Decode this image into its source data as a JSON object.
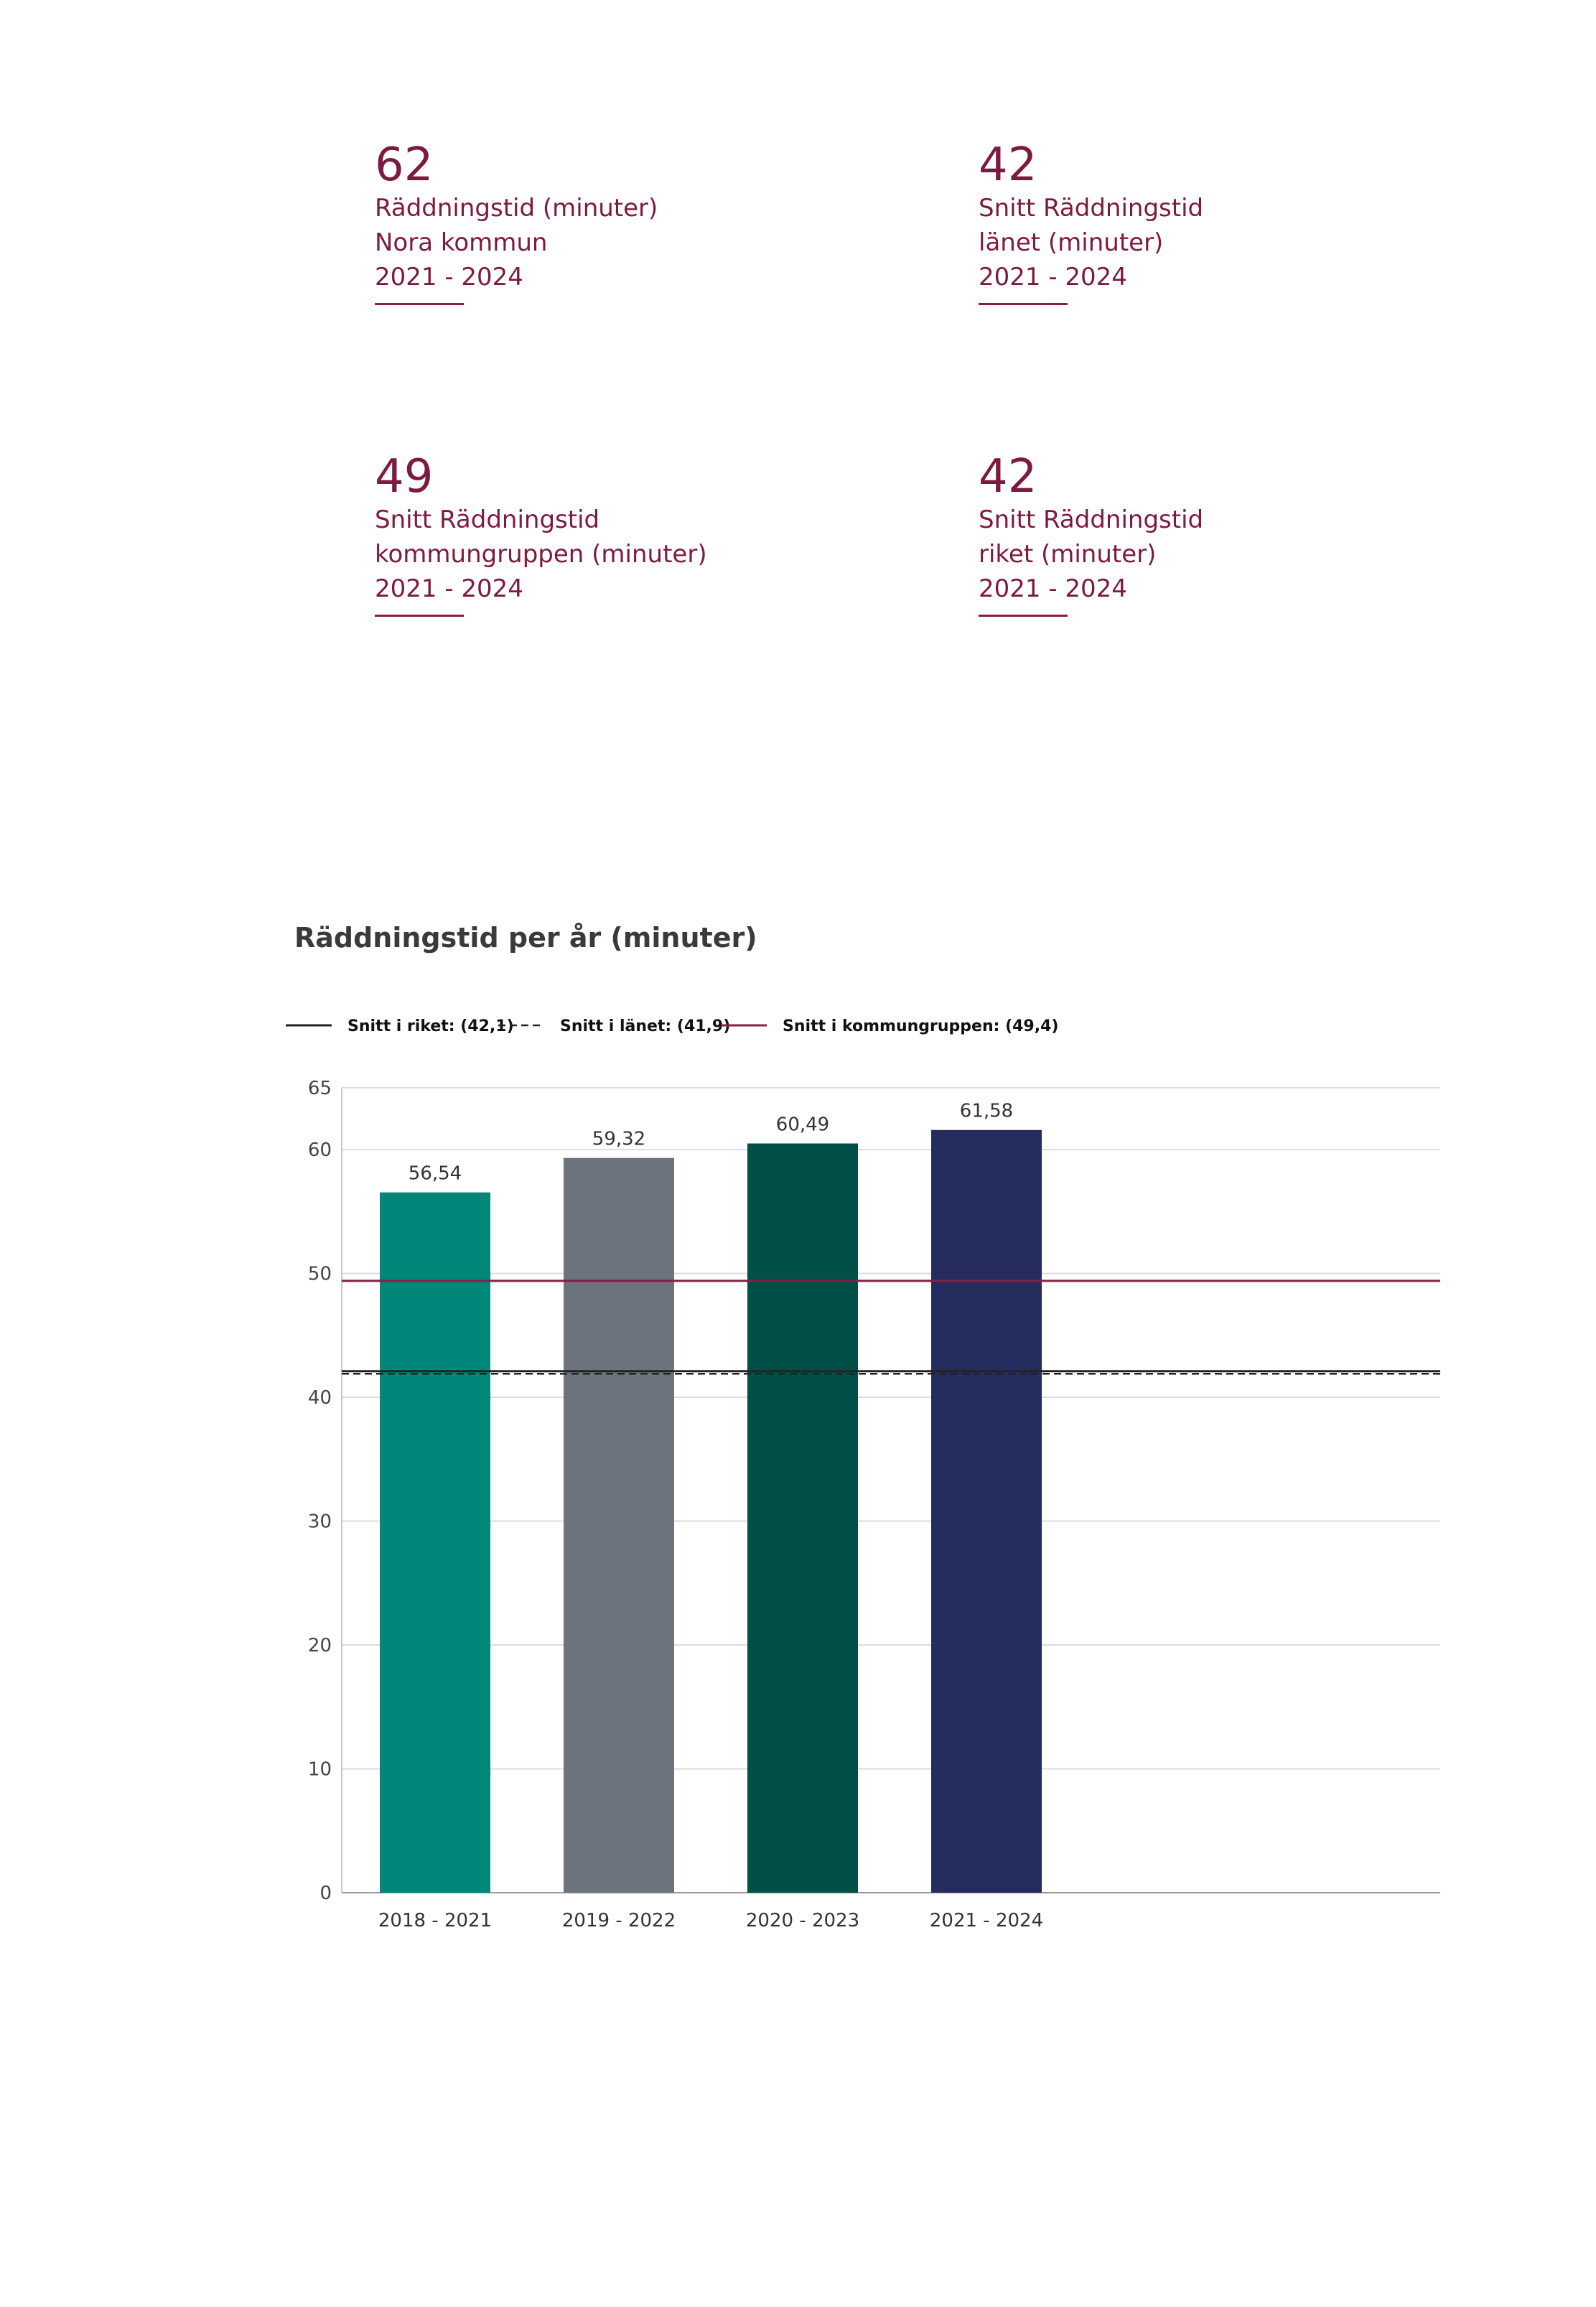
{
  "kpis": [
    {
      "value": "62",
      "lines": [
        "Räddningstid (minuter)",
        "Nora kommun",
        "2021 - 2024"
      ]
    },
    {
      "value": "42",
      "lines": [
        "Snitt Räddningstid",
        "länet (minuter)",
        "2021 - 2024"
      ]
    },
    {
      "value": "49",
      "lines": [
        "Snitt Räddningstid",
        "kommungruppen (minuter)",
        "2021 - 2024"
      ]
    },
    {
      "value": "42",
      "lines": [
        "Snitt Räddningstid",
        "riket (minuter)",
        "2021 - 2024"
      ]
    }
  ],
  "chart_data": {
    "type": "bar",
    "title": "Räddningstid per år (minuter)",
    "categories": [
      "2018 - 2021",
      "2019 - 2022",
      "2020 - 2023",
      "2021 - 2024"
    ],
    "values": [
      56.54,
      59.32,
      60.49,
      61.58
    ],
    "value_labels": [
      "56,54",
      "59,32",
      "60,49",
      "61,58"
    ],
    "bar_colors": [
      "#00877a",
      "#6d737d",
      "#004f46",
      "#252d5e"
    ],
    "ylim": [
      0,
      65
    ],
    "yticks": [
      0,
      10,
      20,
      30,
      40,
      50,
      60,
      65
    ],
    "grid": true,
    "legend_position": "top",
    "reference_lines": [
      {
        "name": "Snitt i riket: (42,1)",
        "value": 42.1,
        "color": "#222222",
        "style": "solid"
      },
      {
        "name": "Snitt i länet: (41,9)",
        "value": 41.9,
        "color": "#222222",
        "style": "dashed"
      },
      {
        "name": "Snitt i kommungruppen: (49,4)",
        "value": 49.4,
        "color": "#8a1c48",
        "style": "solid"
      }
    ]
  }
}
